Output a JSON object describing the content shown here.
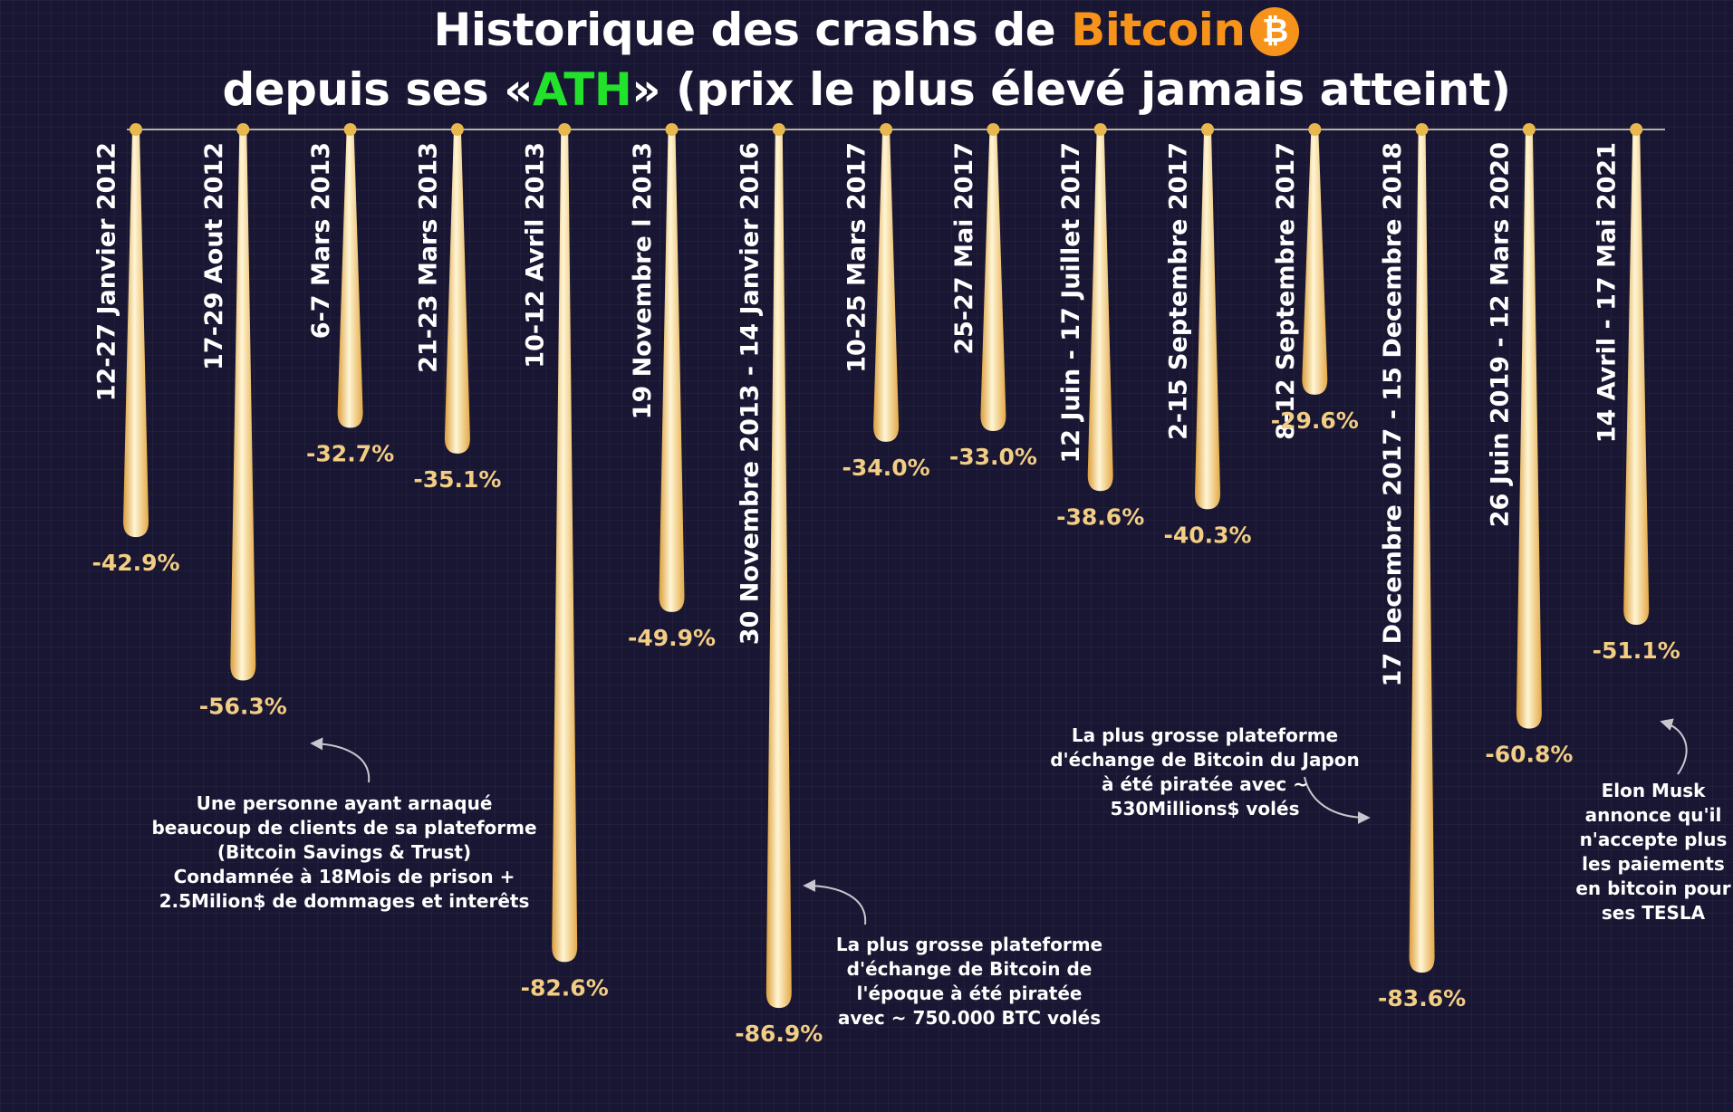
{
  "title": {
    "part1": "Historique des crashs de ",
    "brand": "Bitcoin",
    "icon_glyph": "₿",
    "line2_pre": "depuis ses «",
    "ath": "ATH",
    "line2_post": "» (prix le plus élevé jamais atteint)"
  },
  "chart_data": {
    "type": "bar",
    "orientation": "vertical-downward",
    "title": "Historique des crashs de Bitcoin depuis ses «ATH» (prix le plus élevé jamais atteint)",
    "categories": [
      "12-27 Janvier 2012",
      "17-29 Aout 2012",
      "6-7 Mars 2013",
      "21-23 Mars 2013",
      "10-12 Avril 2013",
      "19 Novembre l 2013",
      "30 Novembre 2013 - 14 Janvier 2016",
      "10-25 Mars 2017",
      "25-27 Mai 2017",
      "12 Juin - 17 Juillet 2017",
      "2-15 Septembre 2017",
      "8-12 Septembre 2017",
      "17 Decembre 2017 - 15 Decembre 2018",
      "26 Juin 2019 - 12 Mars 2020",
      "14 Avril  - 17 Mai 2021"
    ],
    "values": [
      -42.9,
      -56.3,
      -32.7,
      -35.1,
      -82.6,
      -49.9,
      -86.9,
      -34.0,
      -33.0,
      -38.6,
      -40.3,
      -29.6,
      -83.6,
      -60.8,
      -51.1
    ],
    "value_labels": [
      "-42.9%",
      "-56.3%",
      "-32.7%",
      "-35.1%",
      "-82.6%",
      "-49.9%",
      "-86.9%",
      "-34.0%",
      "-33.0%",
      "-38.6%",
      "-40.3%",
      "-29.6%",
      "-83.6%",
      "-60.8%",
      "-51.1%"
    ],
    "ylim": [
      -100,
      0
    ],
    "grid": true,
    "colors": {
      "background": "#181632",
      "bar_light": "#fff3cf",
      "bar_dark": "#e9b04c",
      "value_text": "#f2cd84",
      "axis_line": "#b7b2a6",
      "dot": "#e8b84e",
      "accent_orange": "#f7931a",
      "accent_green": "#22e22c"
    }
  },
  "annotations": [
    {
      "lines": [
        "Une personne ayant arnaqué",
        "beaucoup de clients de sa plateforme",
        "(Bitcoin Savings & Trust)",
        "Condamnée à 18Mois de prison +",
        "2.5Milion$ de dommages et interêts"
      ]
    },
    {
      "lines": [
        "La plus grosse plateforme",
        "d'échange de Bitcoin de",
        "l'époque à été piratée",
        "avec ~ 750.000 BTC volés"
      ]
    },
    {
      "lines": [
        "La plus grosse plateforme",
        "d'échange de Bitcoin du Japon",
        "à été piratée avec ~",
        "530Millions$ volés"
      ]
    },
    {
      "lines": [
        "Elon Musk",
        "annonce qu'il",
        "n'accepte plus",
        "les paiements",
        "en bitcoin pour",
        "ses TESLA"
      ]
    }
  ]
}
